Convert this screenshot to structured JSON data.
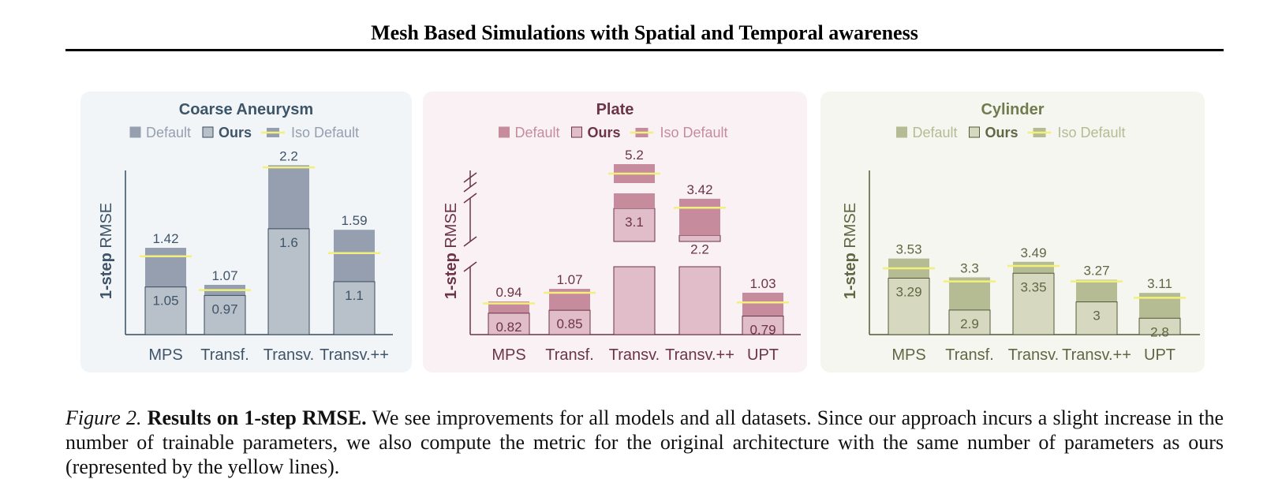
{
  "header": {
    "title": "Mesh Based Simulations with Spatial and Temporal awareness"
  },
  "legend": {
    "default": "Default",
    "ours": "Ours",
    "iso": "Iso Default"
  },
  "ylabel_bold": "1-step",
  "ylabel_rest": " RMSE",
  "colors": {
    "iso_line": "#f2f07a"
  },
  "chart_data": [
    {
      "type": "bar",
      "title": "Coarse Aneurysm",
      "categories": [
        "MPS",
        "Transf.",
        "Transv.",
        "Transv.++"
      ],
      "series": [
        {
          "name": "Default",
          "values": [
            1.42,
            1.07,
            2.2,
            1.59
          ]
        },
        {
          "name": "Ours",
          "values": [
            1.05,
            0.97,
            1.6,
            1.1
          ]
        }
      ],
      "iso_default": [
        1.34,
        1.02,
        2.18,
        1.37
      ],
      "ylim": [
        0.6,
        2.3
      ],
      "broken_axis": false,
      "colors": {
        "bg": "#f2f5f8",
        "default": "#959fb0",
        "ours": "#b8c1ca",
        "text": "#3f5468",
        "title": "#3c5569",
        "edge": "#394c5e"
      }
    },
    {
      "type": "bar",
      "title": "Plate",
      "categories": [
        "MPS",
        "Transf.",
        "Transv.",
        "Transv.++",
        "UPT"
      ],
      "series": [
        {
          "name": "Default",
          "values": [
            0.94,
            1.07,
            5.2,
            3.42,
            1.03
          ]
        },
        {
          "name": "Ours",
          "values": [
            0.82,
            0.85,
            3.1,
            2.2,
            0.79
          ]
        }
      ],
      "iso_default": [
        0.92,
        1.03,
        4.9,
        3.12,
        0.93
      ],
      "broken_axis": true,
      "colors": {
        "bg": "#f9f1f4",
        "default": "#c68c9e",
        "ours": "#e0bdc9",
        "text": "#6c3448",
        "title": "#6c3448",
        "edge": "#6c3448"
      }
    },
    {
      "type": "bar",
      "title": "Cylinder",
      "categories": [
        "MPS",
        "Transf.",
        "Transv.",
        "Transv.++",
        "UPT"
      ],
      "series": [
        {
          "name": "Default",
          "values": [
            3.53,
            3.3,
            3.49,
            3.27,
            3.11
          ]
        },
        {
          "name": "Ours",
          "values": [
            3.29,
            2.9,
            3.35,
            3.0,
            2.8
          ]
        }
      ],
      "iso_default": [
        3.41,
        3.25,
        3.44,
        3.25,
        3.05
      ],
      "ylim": [
        2.6,
        4.8
      ],
      "broken_axis": false,
      "colors": {
        "bg": "#f6f6f0",
        "default": "#b5bb93",
        "ours": "#d6d9c0",
        "text": "#5f6743",
        "title": "#707b4f",
        "edge": "#535a39"
      }
    }
  ],
  "caption": {
    "label": "Figure 2.",
    "title": "Results on 1-step RMSE.",
    "text": "We see improvements for all models and all datasets. Since our approach incurs a slight increase in the number of trainable parameters, we also compute the metric for the original architecture with the same number of parameters as ours (represented by the yellow lines)."
  }
}
